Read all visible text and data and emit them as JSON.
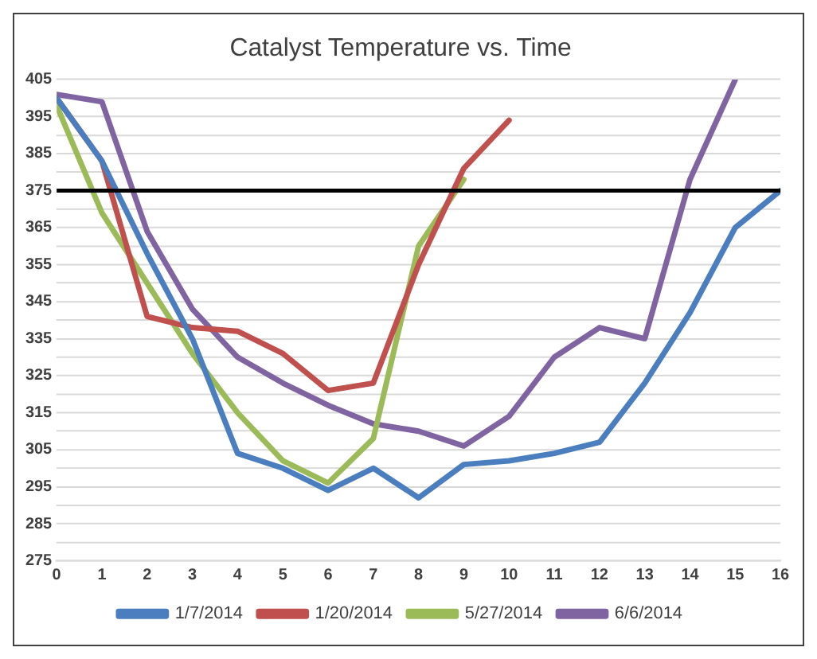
{
  "chart_data": {
    "type": "line",
    "title": "Catalyst Temperature vs. Time",
    "x": [
      0,
      1,
      2,
      3,
      4,
      5,
      6,
      7,
      8,
      9,
      10,
      11,
      12,
      13,
      14,
      15,
      16
    ],
    "series": [
      {
        "name": "1/7/2014",
        "color": "#4a7ebf",
        "values": [
          400,
          383,
          358,
          335,
          304,
          300,
          294,
          300,
          292,
          301,
          302,
          304,
          307,
          323,
          342,
          365,
          375
        ]
      },
      {
        "name": "1/20/2014",
        "color": "#c0504d",
        "values": [
          400,
          383,
          341,
          338,
          337,
          331,
          321,
          323,
          355,
          381,
          394,
          null,
          null,
          null,
          null,
          null,
          null
        ]
      },
      {
        "name": "5/27/2014",
        "color": "#9bbb59",
        "values": [
          398,
          369,
          350,
          331,
          315,
          302,
          296,
          308,
          360,
          378,
          null,
          null,
          null,
          null,
          null,
          null,
          null
        ]
      },
      {
        "name": "6/6/2014",
        "color": "#8064a2",
        "values": [
          401,
          399,
          364,
          343,
          330,
          323,
          317,
          312,
          310,
          306,
          314,
          330,
          338,
          335,
          378,
          405,
          null
        ]
      }
    ],
    "xlim": [
      0,
      16
    ],
    "xticks": [
      0,
      1,
      2,
      3,
      4,
      5,
      6,
      7,
      8,
      9,
      10,
      11,
      12,
      13,
      14,
      15,
      16
    ],
    "ylim": [
      275,
      405
    ],
    "yticks": [
      275,
      {
        "value": 280,
        "label": null
      },
      285,
      {
        "value": 290,
        "label": null
      },
      295,
      {
        "value": 300,
        "label": null
      },
      305,
      {
        "value": 310,
        "label": null
      },
      315,
      {
        "value": 320,
        "label": null
      },
      325,
      {
        "value": 330,
        "label": null
      },
      335,
      {
        "value": 340,
        "label": null
      },
      345,
      {
        "value": 350,
        "label": null
      },
      355,
      {
        "value": 360,
        "label": null
      },
      365,
      {
        "value": 370,
        "label": null
      },
      375,
      {
        "value": 380,
        "label": null
      },
      385,
      {
        "value": 390,
        "label": null
      },
      395,
      {
        "value": 400,
        "label": null
      },
      405
    ],
    "ref_lines": [
      {
        "axis": "y",
        "value": 375,
        "color": "#000000"
      }
    ],
    "grid": "y",
    "legend": "bottom",
    "marker": "none",
    "line_style": "solid"
  }
}
